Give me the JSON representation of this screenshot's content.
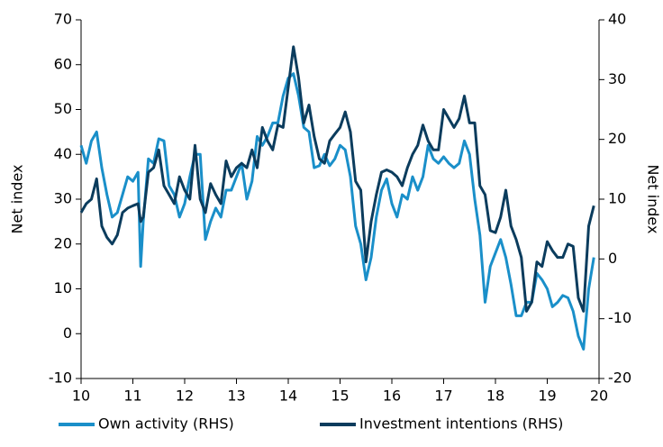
{
  "chart_data": {
    "type": "line",
    "xlabel": null,
    "ylabel": "Net index",
    "y2label": "Net index",
    "xlim": [
      10,
      20
    ],
    "xticks": [
      10,
      11,
      12,
      13,
      14,
      15,
      16,
      17,
      18,
      19,
      20
    ],
    "ylim": [
      -10,
      70
    ],
    "yticks": [
      -10,
      0,
      10,
      20,
      30,
      40,
      50,
      60,
      70
    ],
    "y2lim": [
      -20,
      40
    ],
    "y2ticks": [
      -20,
      -10,
      0,
      10,
      20,
      30,
      40
    ],
    "grid": false,
    "legend": "bottom",
    "x": [
      10.0,
      10.1,
      10.2,
      10.3,
      10.4,
      10.5,
      10.6,
      10.7,
      10.8,
      10.9,
      11.0,
      11.1,
      11.15,
      11.2,
      11.3,
      11.4,
      11.5,
      11.6,
      11.7,
      11.8,
      11.9,
      12.0,
      12.1,
      12.2,
      12.3,
      12.4,
      12.5,
      12.6,
      12.7,
      12.8,
      12.9,
      13.0,
      13.1,
      13.2,
      13.3,
      13.4,
      13.5,
      13.6,
      13.7,
      13.8,
      13.9,
      14.0,
      14.1,
      14.2,
      14.3,
      14.4,
      14.5,
      14.6,
      14.7,
      14.8,
      14.9,
      15.0,
      15.1,
      15.2,
      15.3,
      15.4,
      15.5,
      15.6,
      15.7,
      15.8,
      15.9,
      16.0,
      16.1,
      16.2,
      16.3,
      16.4,
      16.5,
      16.6,
      16.7,
      16.8,
      16.9,
      17.0,
      17.1,
      17.2,
      17.3,
      17.4,
      17.5,
      17.6,
      17.7,
      17.8,
      17.9,
      18.0,
      18.1,
      18.2,
      18.3,
      18.4,
      18.5,
      18.6,
      18.7,
      18.8,
      18.9,
      19.0,
      19.1,
      19.2,
      19.3,
      19.4,
      19.5,
      19.6,
      19.7,
      19.8,
      19.9
    ],
    "series": [
      {
        "name": "Own activity (RHS)",
        "color": "#1a8fc9",
        "axis": "y2",
        "values": [
          19,
          16,
          19.75,
          21.25,
          15.25,
          10.75,
          7,
          7.75,
          10.75,
          13.75,
          13,
          14.5,
          -1.25,
          6.25,
          16.75,
          16,
          20.1,
          19.75,
          12.25,
          10.75,
          7,
          9.25,
          13.75,
          17.5,
          17.5,
          3.25,
          6.25,
          8.5,
          7,
          11.5,
          11.5,
          13.75,
          16,
          10,
          13,
          20.5,
          19,
          20.5,
          22.75,
          22.75,
          27.25,
          30.25,
          31,
          27.25,
          22,
          21.25,
          15.25,
          15.6,
          17.5,
          15.6,
          16.75,
          19,
          18.25,
          13.75,
          5.5,
          2.5,
          -3.5,
          0.25,
          7,
          11.5,
          13.4,
          9.25,
          7,
          10.75,
          10,
          13.75,
          11.5,
          13.75,
          19,
          16.75,
          16,
          17.1,
          16,
          15.25,
          16,
          19.75,
          17.5,
          10,
          4,
          -7.25,
          -1.25,
          1,
          3.25,
          0.25,
          -4.25,
          -9.5,
          -9.5,
          -7.25,
          -7.25,
          -2.4,
          -3.5,
          -5,
          -8,
          -7.25,
          -6.1,
          -6.5,
          -8.75,
          -12.9,
          -15.1,
          -5,
          0.25
        ]
      },
      {
        "name": "Investment intentions (RHS)",
        "color": "#0b3c5d",
        "axis": "y2",
        "values": [
          7.75,
          9.25,
          10,
          13.4,
          5.5,
          3.6,
          2.5,
          4,
          7.75,
          8.5,
          8.9,
          9.25,
          6.25,
          7,
          14.5,
          15.25,
          18.25,
          12.25,
          10.75,
          9.25,
          13.75,
          11.5,
          10,
          19,
          10,
          7.75,
          12.6,
          10.75,
          9.25,
          16.4,
          13.75,
          15.25,
          16,
          15.25,
          18.25,
          15.25,
          22,
          19.75,
          18.25,
          22.4,
          22,
          28.75,
          35.5,
          30.25,
          22.75,
          25.75,
          20.5,
          16.75,
          16,
          19.75,
          20.9,
          22,
          24.6,
          21.25,
          13,
          11.5,
          -0.5,
          6.25,
          10.75,
          14.5,
          14.9,
          14.5,
          13.75,
          12.25,
          15.25,
          17.5,
          19,
          22.4,
          19.75,
          18.25,
          18.25,
          25,
          23.5,
          22,
          23.5,
          27.25,
          22.75,
          22.75,
          12.25,
          10.75,
          4.75,
          4.4,
          7,
          11.5,
          5.5,
          3.25,
          0.25,
          -8.75,
          -7.25,
          -0.5,
          -1.25,
          2.9,
          1.4,
          0.25,
          0.25,
          2.5,
          2.1,
          -6.5,
          -8.75,
          5.5,
          8.9
        ]
      }
    ]
  }
}
